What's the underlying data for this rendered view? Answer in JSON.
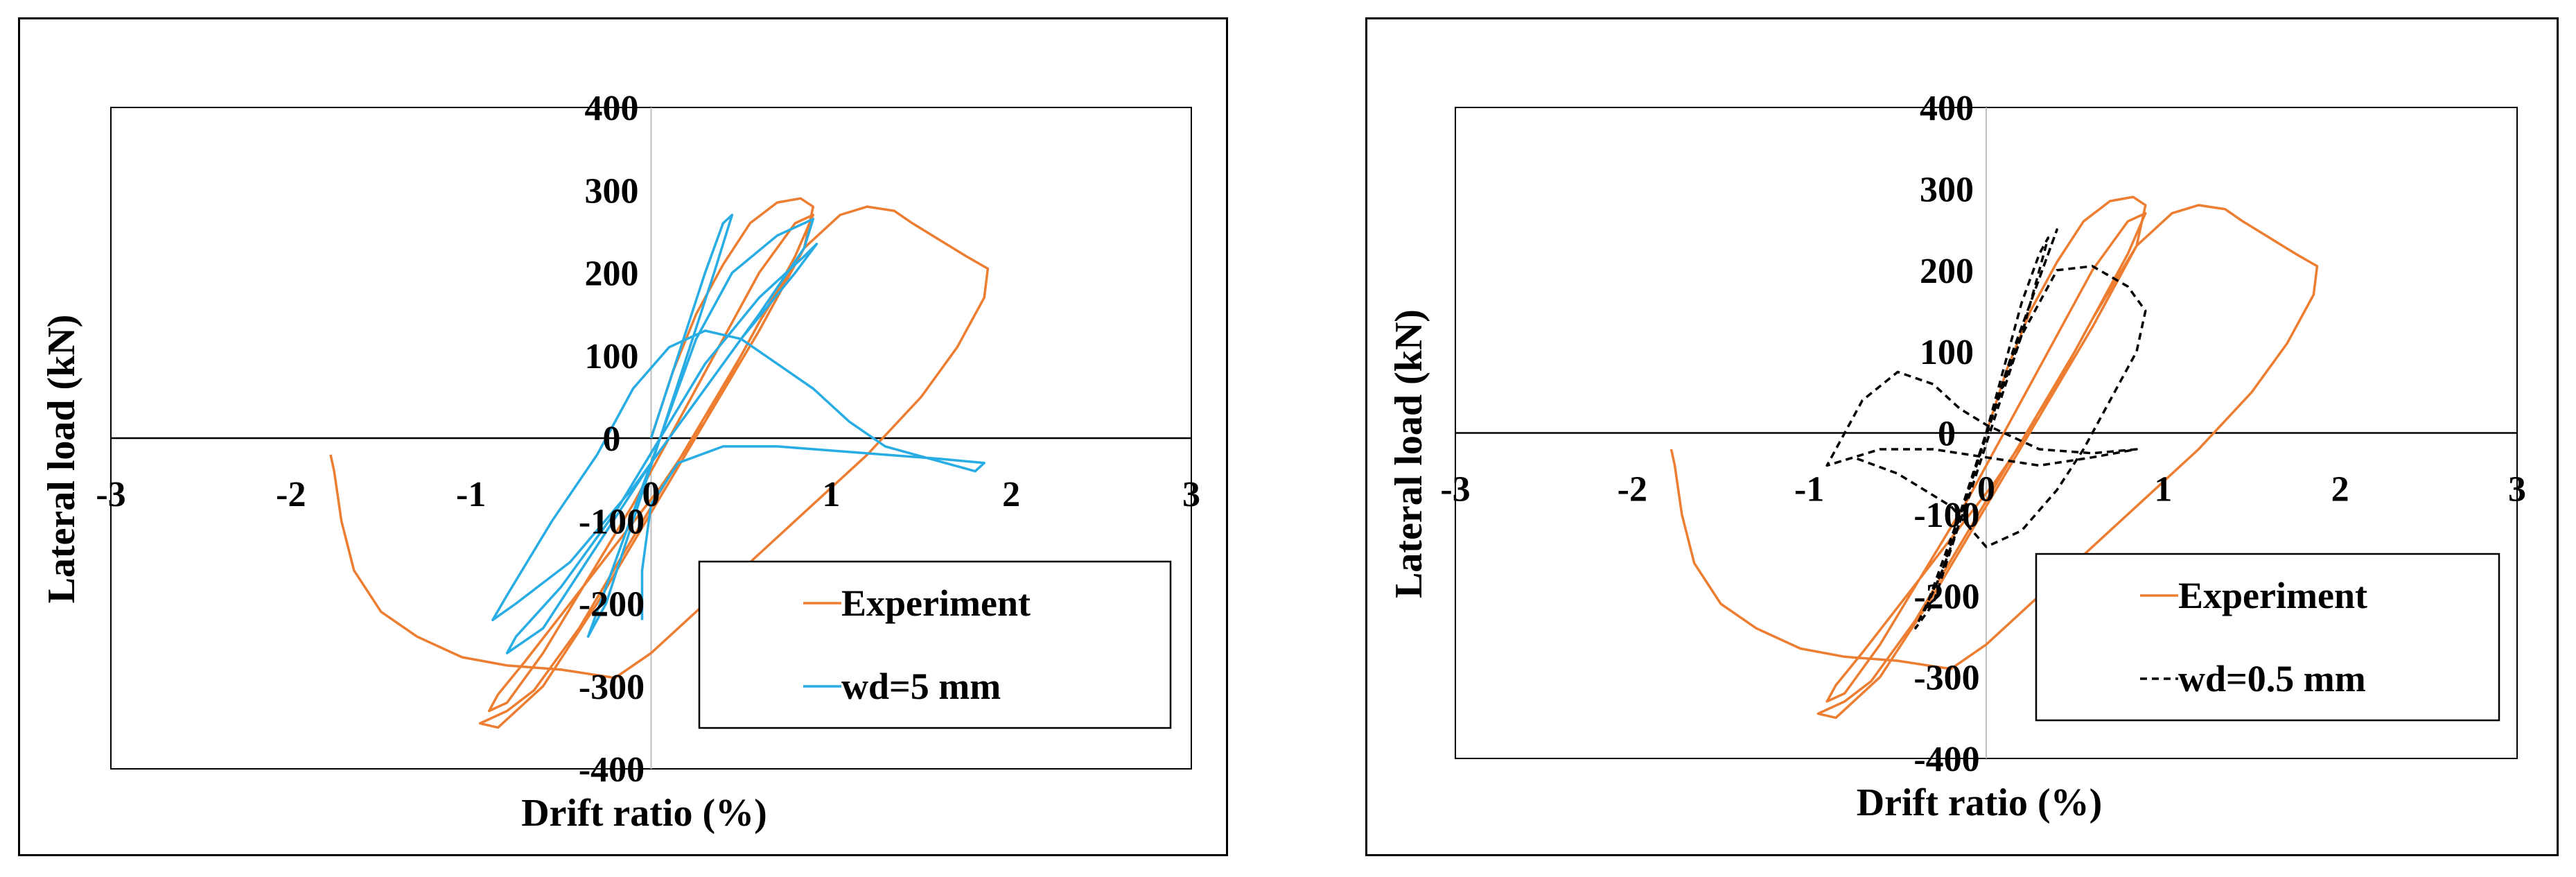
{
  "chart_data": [
    {
      "type": "line",
      "xlabel": "Drift ratio (%)",
      "ylabel": "Lateral load (kN)",
      "xlim": [
        -3,
        3
      ],
      "ylim": [
        -400,
        400
      ],
      "xticks": [
        -3,
        -2,
        -1,
        0,
        1,
        2,
        3
      ],
      "yticks": [
        -400,
        -300,
        -200,
        -100,
        0,
        100,
        200,
        300,
        400
      ],
      "grid": false,
      "legend_position": "bottom-right",
      "series": [
        {
          "name": "Experiment",
          "color": "#ED7D31",
          "dash": "solid",
          "points": [
            [
              0,
              0
            ],
            [
              0.12,
              80
            ],
            [
              0.25,
              150
            ],
            [
              0.4,
              210
            ],
            [
              0.55,
              260
            ],
            [
              0.7,
              285
            ],
            [
              0.83,
              290
            ],
            [
              0.9,
              280
            ],
            [
              0.85,
              230
            ],
            [
              0.6,
              130
            ],
            [
              0.3,
              20
            ],
            [
              0.05,
              -60
            ],
            [
              -0.2,
              -130
            ],
            [
              -0.45,
              -200
            ],
            [
              -0.7,
              -270
            ],
            [
              -0.85,
              -310
            ],
            [
              -0.9,
              -330
            ],
            [
              -0.8,
              -320
            ],
            [
              -0.6,
              -260
            ],
            [
              -0.35,
              -170
            ],
            [
              -0.1,
              -80
            ],
            [
              0.1,
              0
            ],
            [
              0.35,
              100
            ],
            [
              0.6,
              200
            ],
            [
              0.8,
              260
            ],
            [
              0.9,
              270
            ],
            [
              0.8,
              220
            ],
            [
              0.5,
              100
            ],
            [
              0.2,
              -10
            ],
            [
              -0.1,
              -120
            ],
            [
              -0.4,
              -230
            ],
            [
              -0.65,
              -305
            ],
            [
              -0.8,
              -330
            ],
            [
              -0.95,
              -345
            ],
            [
              -0.85,
              -350
            ],
            [
              -0.6,
              -300
            ],
            [
              -0.3,
              -200
            ],
            [
              0,
              -90
            ],
            [
              0.3,
              20
            ],
            [
              0.6,
              140
            ],
            [
              0.85,
              230
            ],
            [
              1.05,
              270
            ],
            [
              1.2,
              280
            ],
            [
              1.35,
              275
            ],
            [
              1.45,
              260
            ],
            [
              1.6,
              240
            ],
            [
              1.75,
              220
            ],
            [
              1.87,
              205
            ],
            [
              1.85,
              170
            ],
            [
              1.7,
              110
            ],
            [
              1.5,
              50
            ],
            [
              1.2,
              -20
            ],
            [
              0.9,
              -80
            ],
            [
              0.6,
              -140
            ],
            [
              0.3,
              -200
            ],
            [
              0,
              -260
            ],
            [
              -0.2,
              -290
            ],
            [
              -0.5,
              -280
            ],
            [
              -0.8,
              -275
            ],
            [
              -1.05,
              -265
            ],
            [
              -1.3,
              -240
            ],
            [
              -1.5,
              -210
            ],
            [
              -1.65,
              -160
            ],
            [
              -1.72,
              -100
            ],
            [
              -1.76,
              -40
            ],
            [
              -1.78,
              -20
            ]
          ]
        },
        {
          "name": "wd=5 mm",
          "color": "#27ACE3",
          "dash": "solid",
          "points": [
            [
              0,
              0
            ],
            [
              0.15,
              100
            ],
            [
              0.3,
              200
            ],
            [
              0.4,
              260
            ],
            [
              0.45,
              270
            ],
            [
              0.35,
              200
            ],
            [
              0.2,
              100
            ],
            [
              0.05,
              0
            ],
            [
              -0.15,
              -120
            ],
            [
              -0.3,
              -210
            ],
            [
              -0.35,
              -240
            ],
            [
              -0.25,
              -200
            ],
            [
              -0.1,
              -100
            ],
            [
              0.05,
              0
            ],
            [
              0.25,
              120
            ],
            [
              0.45,
              200
            ],
            [
              0.7,
              245
            ],
            [
              0.9,
              265
            ],
            [
              0.85,
              230
            ],
            [
              0.6,
              150
            ],
            [
              0.3,
              60
            ],
            [
              0,
              -30
            ],
            [
              -0.3,
              -130
            ],
            [
              -0.6,
              -230
            ],
            [
              -0.8,
              -260
            ],
            [
              -0.75,
              -240
            ],
            [
              -0.5,
              -180
            ],
            [
              -0.2,
              -90
            ],
            [
              0.05,
              0
            ],
            [
              0.3,
              90
            ],
            [
              0.6,
              170
            ],
            [
              0.85,
              220
            ],
            [
              0.92,
              235
            ],
            [
              0.8,
              200
            ],
            [
              0.5,
              120
            ],
            [
              0.2,
              30
            ],
            [
              -0.1,
              -60
            ],
            [
              -0.45,
              -150
            ],
            [
              -0.75,
              -200
            ],
            [
              -0.88,
              -220
            ],
            [
              -0.8,
              -190
            ],
            [
              -0.55,
              -100
            ],
            [
              -0.3,
              -20
            ],
            [
              -0.1,
              60
            ],
            [
              0.1,
              110
            ],
            [
              0.3,
              130
            ],
            [
              0.5,
              120
            ],
            [
              0.7,
              90
            ],
            [
              0.9,
              60
            ],
            [
              1.1,
              20
            ],
            [
              1.3,
              -10
            ],
            [
              1.55,
              -25
            ],
            [
              1.8,
              -40
            ],
            [
              1.85,
              -30
            ],
            [
              1.6,
              -25
            ],
            [
              1.3,
              -20
            ],
            [
              1.0,
              -15
            ],
            [
              0.7,
              -10
            ],
            [
              0.4,
              -10
            ],
            [
              0.15,
              -30
            ],
            [
              0,
              -80
            ],
            [
              -0.05,
              -160
            ],
            [
              -0.05,
              -220
            ]
          ]
        }
      ]
    },
    {
      "type": "line",
      "xlabel": "Drift ratio (%)",
      "ylabel": "Lateral load (kN)",
      "xlim": [
        -3,
        3
      ],
      "ylim": [
        -400,
        400
      ],
      "xticks": [
        -3,
        -2,
        -1,
        0,
        1,
        2,
        3
      ],
      "yticks": [
        -400,
        -300,
        -200,
        -100,
        0,
        100,
        200,
        300,
        400
      ],
      "grid": false,
      "legend_position": "bottom-right",
      "series": [
        {
          "name": "Experiment",
          "color": "#ED7D31",
          "dash": "solid",
          "points": [
            [
              0,
              0
            ],
            [
              0.12,
              80
            ],
            [
              0.25,
              150
            ],
            [
              0.4,
              210
            ],
            [
              0.55,
              260
            ],
            [
              0.7,
              285
            ],
            [
              0.83,
              290
            ],
            [
              0.9,
              280
            ],
            [
              0.85,
              230
            ],
            [
              0.6,
              130
            ],
            [
              0.3,
              20
            ],
            [
              0.05,
              -60
            ],
            [
              -0.2,
              -130
            ],
            [
              -0.45,
              -200
            ],
            [
              -0.7,
              -270
            ],
            [
              -0.85,
              -310
            ],
            [
              -0.9,
              -330
            ],
            [
              -0.8,
              -320
            ],
            [
              -0.6,
              -260
            ],
            [
              -0.35,
              -170
            ],
            [
              -0.1,
              -80
            ],
            [
              0.1,
              0
            ],
            [
              0.35,
              100
            ],
            [
              0.6,
              200
            ],
            [
              0.8,
              260
            ],
            [
              0.9,
              270
            ],
            [
              0.8,
              220
            ],
            [
              0.5,
              100
            ],
            [
              0.2,
              -10
            ],
            [
              -0.1,
              -120
            ],
            [
              -0.4,
              -230
            ],
            [
              -0.65,
              -305
            ],
            [
              -0.8,
              -330
            ],
            [
              -0.95,
              -345
            ],
            [
              -0.85,
              -350
            ],
            [
              -0.6,
              -300
            ],
            [
              -0.3,
              -200
            ],
            [
              0,
              -90
            ],
            [
              0.3,
              20
            ],
            [
              0.6,
              140
            ],
            [
              0.85,
              230
            ],
            [
              1.05,
              270
            ],
            [
              1.2,
              280
            ],
            [
              1.35,
              275
            ],
            [
              1.45,
              260
            ],
            [
              1.6,
              240
            ],
            [
              1.75,
              220
            ],
            [
              1.87,
              205
            ],
            [
              1.85,
              170
            ],
            [
              1.7,
              110
            ],
            [
              1.5,
              50
            ],
            [
              1.2,
              -20
            ],
            [
              0.9,
              -80
            ],
            [
              0.6,
              -140
            ],
            [
              0.3,
              -200
            ],
            [
              0,
              -260
            ],
            [
              -0.2,
              -290
            ],
            [
              -0.5,
              -280
            ],
            [
              -0.8,
              -275
            ],
            [
              -1.05,
              -265
            ],
            [
              -1.3,
              -240
            ],
            [
              -1.5,
              -210
            ],
            [
              -1.65,
              -160
            ],
            [
              -1.72,
              -100
            ],
            [
              -1.76,
              -40
            ],
            [
              -1.78,
              -20
            ]
          ]
        },
        {
          "name": "wd=0.5 mm",
          "color": "#000000",
          "dash": "dashed",
          "points": [
            [
              0,
              0
            ],
            [
              0.1,
              80
            ],
            [
              0.2,
              160
            ],
            [
              0.3,
              220
            ],
            [
              0.35,
              240
            ],
            [
              0.3,
              200
            ],
            [
              0.2,
              120
            ],
            [
              0.05,
              20
            ],
            [
              -0.1,
              -80
            ],
            [
              -0.25,
              -170
            ],
            [
              -0.35,
              -220
            ],
            [
              -0.3,
              -190
            ],
            [
              -0.15,
              -100
            ],
            [
              0,
              0
            ],
            [
              0.15,
              100
            ],
            [
              0.3,
              190
            ],
            [
              0.4,
              250
            ],
            [
              0.35,
              220
            ],
            [
              0.2,
              130
            ],
            [
              0.05,
              30
            ],
            [
              -0.1,
              -70
            ],
            [
              -0.25,
              -170
            ],
            [
              -0.4,
              -240
            ],
            [
              -0.3,
              -210
            ],
            [
              -0.15,
              -110
            ],
            [
              0,
              0
            ],
            [
              0.2,
              120
            ],
            [
              0.4,
              200
            ],
            [
              0.6,
              205
            ],
            [
              0.8,
              180
            ],
            [
              0.9,
              150
            ],
            [
              0.85,
              100
            ],
            [
              0.7,
              40
            ],
            [
              0.55,
              -20
            ],
            [
              0.4,
              -70
            ],
            [
              0.2,
              -120
            ],
            [
              0,
              -140
            ],
            [
              -0.2,
              -90
            ],
            [
              -0.5,
              -50
            ],
            [
              -0.75,
              -30
            ],
            [
              -0.9,
              -40
            ],
            [
              -0.85,
              -20
            ],
            [
              -0.7,
              40
            ],
            [
              -0.5,
              75
            ],
            [
              -0.3,
              60
            ],
            [
              -0.15,
              30
            ],
            [
              0,
              10
            ],
            [
              0.3,
              -20
            ],
            [
              0.6,
              -25
            ],
            [
              0.85,
              -20
            ],
            [
              0.6,
              -30
            ],
            [
              0.3,
              -40
            ],
            [
              0,
              -30
            ],
            [
              -0.3,
              -20
            ],
            [
              -0.6,
              -20
            ],
            [
              -0.9,
              -40
            ]
          ]
        }
      ]
    }
  ]
}
